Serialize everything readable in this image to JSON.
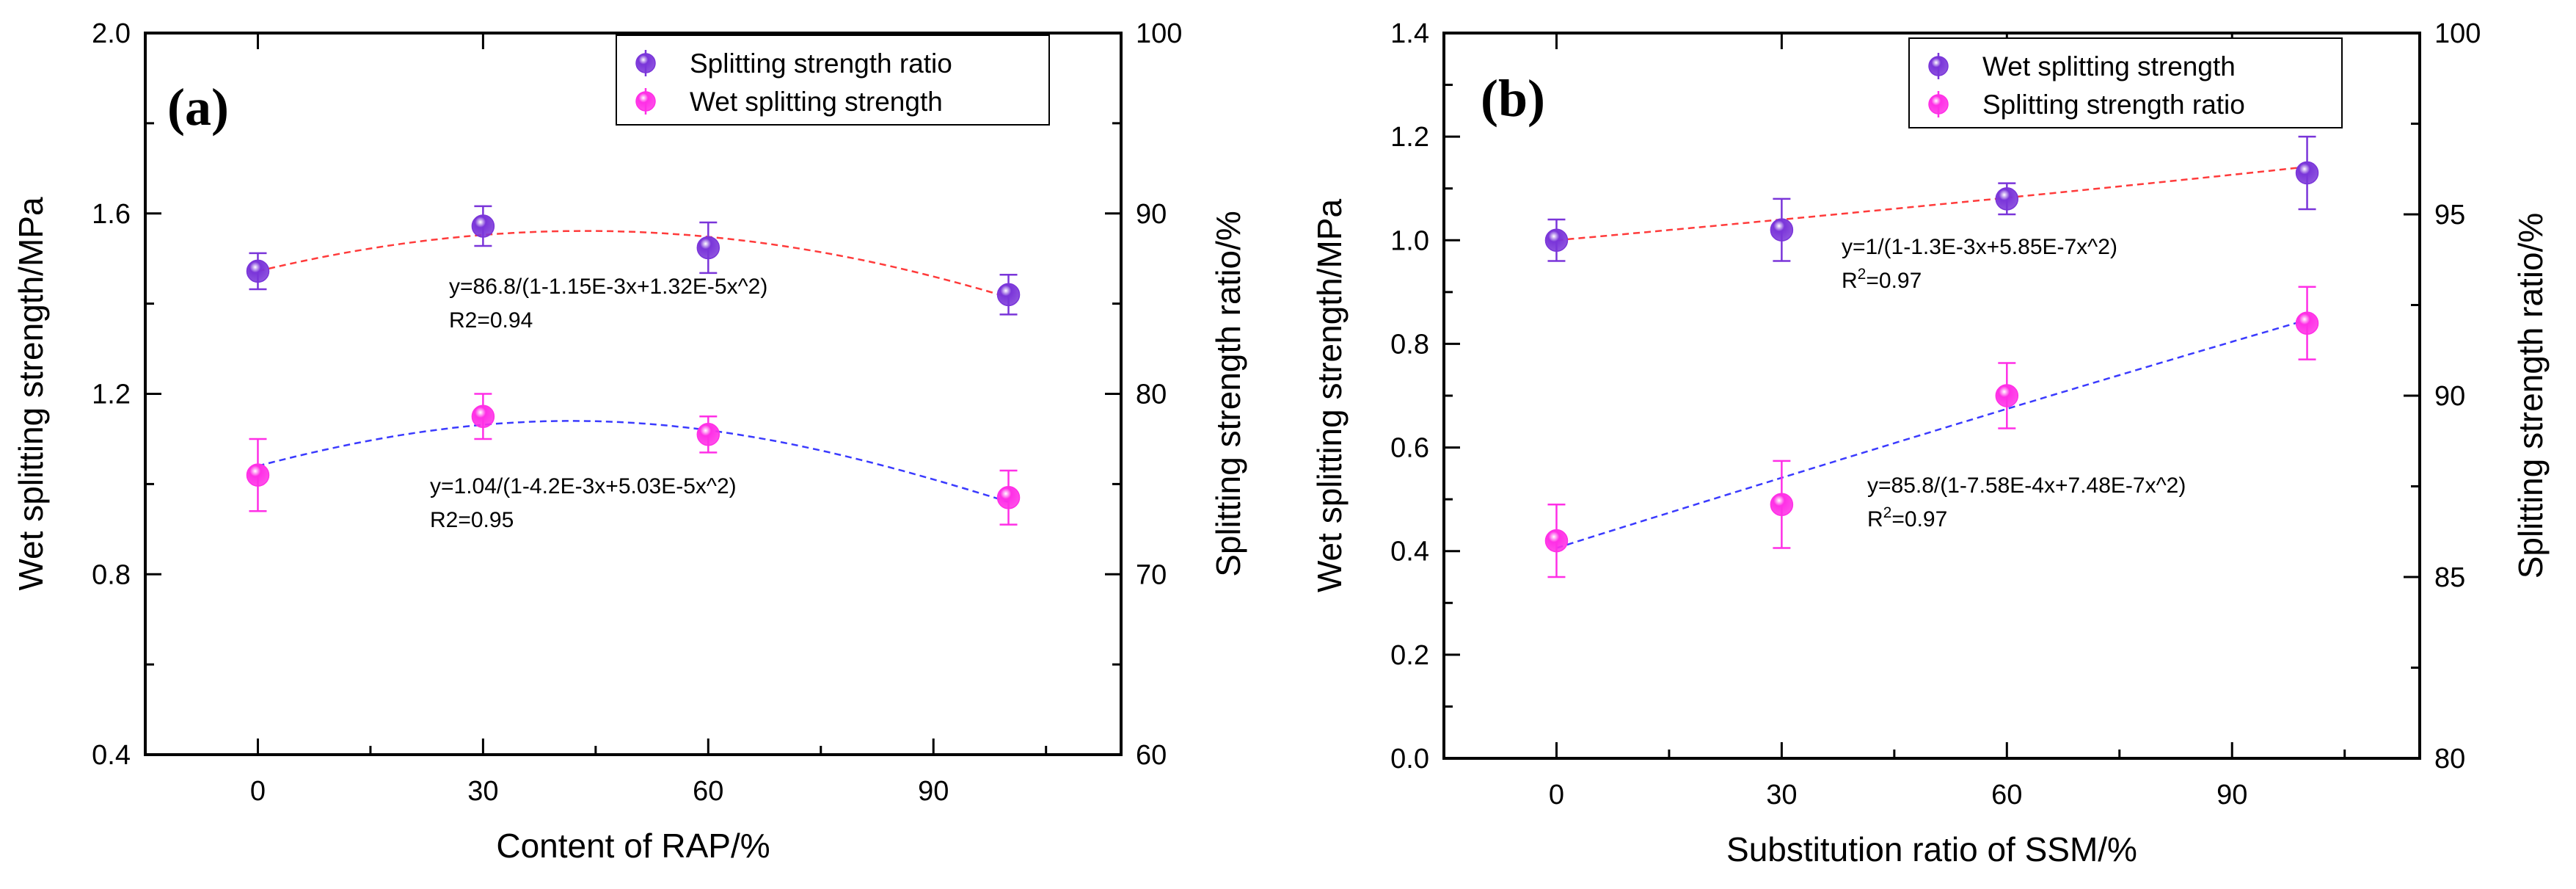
{
  "chart_data": [
    {
      "type": "scatter",
      "panel_label": "(a)",
      "xlabel": "Content of RAP/%",
      "ylabel_left": "Wet splitting strength/MPa",
      "ylabel_right": "Splitting strength ratio/%",
      "x_range": [
        -15,
        115
      ],
      "y_left_range": [
        0.4,
        2.0
      ],
      "y_right_range": [
        60,
        100
      ],
      "x_ticks": [
        "0",
        "30",
        "60",
        "90"
      ],
      "y_left_ticks": [
        "0.4",
        "0.8",
        "1.2",
        "1.6",
        "2.0"
      ],
      "y_right_ticks": [
        "60",
        "70",
        "80",
        "90",
        "100"
      ],
      "legend": [
        "Splitting strength ratio",
        "Wet splitting strength"
      ],
      "series": [
        {
          "name": "Splitting strength ratio",
          "axis": "right",
          "color": "#7a35d9",
          "x": [
            0,
            30,
            60,
            100
          ],
          "y": [
            86.8,
            89.3,
            88.1,
            85.5
          ],
          "err": [
            1.0,
            1.1,
            1.4,
            1.1
          ],
          "fit_color": "#ff3b3b",
          "fit": {
            "a": 86.8,
            "b": -0.00115,
            "c": 1.32e-05
          },
          "equation": "y=86.8/(1-1.15E-3x+1.32E-5x^2)",
          "r2": "R2=0.94"
        },
        {
          "name": "Wet splitting strength",
          "axis": "left",
          "color": "#ff2fe6",
          "x": [
            0,
            30,
            60,
            100
          ],
          "y": [
            1.02,
            1.15,
            1.11,
            0.97
          ],
          "err": [
            0.08,
            0.05,
            0.04,
            0.06
          ],
          "fit_color": "#3b3bff",
          "fit": {
            "a": 1.04,
            "b": -0.0042,
            "c": 5.03e-05
          },
          "equation": "y=1.04/(1-4.2E-3x+5.03E-5x^2)",
          "r2": "R2=0.95"
        }
      ]
    },
    {
      "type": "scatter",
      "panel_label": "(b)",
      "xlabel": "Substitution ratio of SSM/%",
      "ylabel_left": "Wet splitting strength/MPa",
      "ylabel_right": "Splitting strength ratio/%",
      "x_range": [
        -15,
        115
      ],
      "y_left_range": [
        0.0,
        1.4
      ],
      "y_right_range": [
        80,
        100
      ],
      "x_ticks": [
        "0",
        "30",
        "60",
        "90"
      ],
      "y_left_ticks": [
        "0.0",
        "0.2",
        "0.4",
        "0.6",
        "0.8",
        "1.0",
        "1.2",
        "1.4"
      ],
      "y_right_ticks": [
        "80",
        "85",
        "90",
        "95",
        "100"
      ],
      "legend": [
        "Wet splitting strength",
        "Splitting strength ratio"
      ],
      "series": [
        {
          "name": "Wet splitting strength",
          "axis": "left",
          "color": "#7a35d9",
          "x": [
            0,
            30,
            60,
            100
          ],
          "y": [
            1.0,
            1.02,
            1.08,
            1.13
          ],
          "err": [
            0.04,
            0.06,
            0.03,
            0.07
          ],
          "fit_color": "#ff3b3b",
          "fit": {
            "a": 1.0,
            "b": -0.0013,
            "c": 5.85e-07
          },
          "equation": "y=1/(1-1.3E-3x+5.85E-7x^2)",
          "r2": "R2=0.97"
        },
        {
          "name": "Splitting strength ratio",
          "axis": "right",
          "color": "#ff2fe6",
          "x": [
            0,
            30,
            60,
            100
          ],
          "y": [
            86.0,
            87.0,
            90.0,
            92.0
          ],
          "err": [
            1.0,
            1.2,
            0.9,
            1.0
          ],
          "fit_color": "#3b3bff",
          "fit": {
            "a": 85.8,
            "b": -0.000758,
            "c": 7.48e-07
          },
          "equation": "y=85.8/(1-7.58E-4x+7.48E-7x^2)",
          "r2": "R2=0.97"
        }
      ]
    }
  ]
}
